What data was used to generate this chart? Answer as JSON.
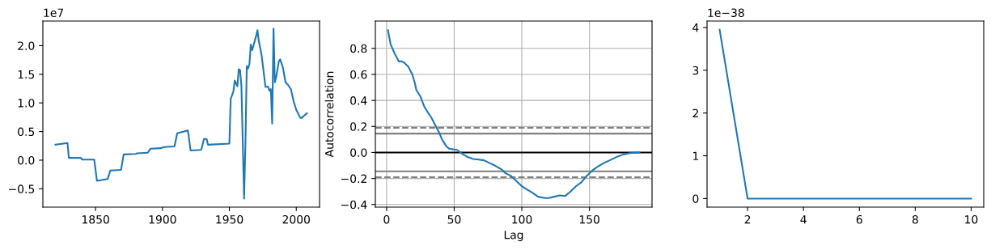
{
  "chart_data": [
    {
      "type": "line",
      "annotations": [
        "1e7"
      ],
      "xlim": [
        1810.6,
        2017.4
      ],
      "ylim": [
        -0.82,
        2.43
      ],
      "xticks": [
        1850,
        1900,
        1950,
        2000
      ],
      "yticks": [
        {
          "value": -0.5,
          "label": "−0.5"
        },
        {
          "value": 0,
          "label": "0.0"
        },
        {
          "value": 0.5,
          "label": "0.5"
        },
        {
          "value": 1,
          "label": "1.0"
        },
        {
          "value": 1.5,
          "label": "1.5"
        },
        {
          "value": 2,
          "label": "2.0"
        }
      ],
      "grid": false,
      "x": [
        1820,
        1829,
        1830,
        1839,
        1840,
        1849,
        1851,
        1859,
        1861,
        1869,
        1871,
        1880,
        1881,
        1889,
        1891,
        1899,
        1901,
        1909,
        1911,
        1919,
        1921,
        1929,
        1931,
        1933,
        1934,
        1950,
        1951,
        1953,
        1954,
        1956,
        1957,
        1958,
        1959,
        1961,
        1962,
        1963,
        1964,
        1965,
        1966,
        1967,
        1968,
        1970,
        1971,
        1972,
        1974,
        1977,
        1979,
        1980,
        1981,
        1982,
        1983,
        1984,
        1985,
        1987,
        1988,
        1990,
        1992,
        1994,
        1996,
        1998,
        2000,
        2003,
        2004,
        2008
      ],
      "series": [
        {
          "color": "#1f77b4",
          "values": [
            0.27,
            0.3,
            0.04,
            0.04,
            0.01,
            0.01,
            -0.36,
            -0.33,
            -0.18,
            -0.17,
            0.1,
            0.11,
            0.12,
            0.13,
            0.2,
            0.21,
            0.23,
            0.24,
            0.47,
            0.52,
            0.17,
            0.18,
            0.37,
            0.37,
            0.27,
            0.29,
            1.07,
            1.2,
            1.39,
            1.29,
            1.59,
            1.57,
            1.3,
            -0.67,
            0.3,
            1.64,
            1.6,
            1.68,
            2.02,
            1.92,
            2.0,
            2.17,
            2.27,
            2.08,
            1.85,
            1.28,
            1.28,
            1.21,
            1.24,
            0.64,
            2.3,
            1.36,
            1.45,
            1.73,
            1.76,
            1.62,
            1.36,
            1.31,
            1.24,
            1.03,
            0.88,
            0.74,
            0.74,
            0.82
          ]
        }
      ]
    },
    {
      "type": "line",
      "xlabel": "Lag",
      "ylabel": "Autocorrelation",
      "xlim": [
        -8.3,
        196.3
      ],
      "ylim": [
        -0.42,
        1.01
      ],
      "xticks": [
        0,
        50,
        100,
        150
      ],
      "yticks": [
        {
          "value": -0.4,
          "label": "−0.4"
        },
        {
          "value": -0.2,
          "label": "−0.2"
        },
        {
          "value": 0,
          "label": "0.0"
        },
        {
          "value": 0.2,
          "label": "0.2"
        },
        {
          "value": 0.4,
          "label": "0.4"
        },
        {
          "value": 0.6,
          "label": "0.6"
        },
        {
          "value": 0.8,
          "label": "0.8"
        }
      ],
      "grid": true,
      "ref_lines": [
        {
          "axis": "y",
          "value": 0.19,
          "color": "#808080",
          "line_style": "dashed"
        },
        {
          "axis": "y",
          "value": 0.145,
          "color": "#808080",
          "line_style": "solid"
        },
        {
          "axis": "y",
          "value": 0,
          "color": "#000000",
          "line_style": "solid"
        },
        {
          "axis": "y",
          "value": -0.145,
          "color": "#808080",
          "line_style": "solid"
        },
        {
          "axis": "y",
          "value": -0.19,
          "color": "#808080",
          "line_style": "dashed"
        }
      ],
      "x": [
        1,
        3,
        6,
        9,
        11,
        13,
        16,
        19,
        21,
        22,
        25,
        28,
        31,
        33,
        36,
        39,
        41,
        44,
        46,
        49,
        52,
        56,
        60,
        64,
        68,
        72,
        76,
        80,
        85,
        88,
        92,
        96,
        100,
        104,
        108,
        112,
        117,
        120,
        124,
        128,
        132,
        136,
        140,
        144,
        148,
        152,
        156,
        160,
        165,
        170,
        175,
        180,
        187
      ],
      "series": [
        {
          "color": "#1f77b4",
          "values": [
            0.94,
            0.83,
            0.76,
            0.7,
            0.7,
            0.69,
            0.66,
            0.6,
            0.53,
            0.48,
            0.43,
            0.35,
            0.3,
            0.27,
            0.21,
            0.15,
            0.1,
            0.05,
            0.03,
            0.025,
            0.02,
            -0.01,
            -0.035,
            -0.05,
            -0.055,
            -0.06,
            -0.08,
            -0.1,
            -0.13,
            -0.16,
            -0.18,
            -0.22,
            -0.26,
            -0.285,
            -0.31,
            -0.34,
            -0.35,
            -0.35,
            -0.34,
            -0.33,
            -0.335,
            -0.3,
            -0.26,
            -0.23,
            -0.18,
            -0.14,
            -0.11,
            -0.085,
            -0.06,
            -0.035,
            -0.015,
            -0.005,
            0.0
          ]
        }
      ]
    },
    {
      "type": "line",
      "annotations": [
        "1e−38"
      ],
      "xlim": [
        0.55,
        10.45
      ],
      "ylim": [
        -0.2,
        4.15
      ],
      "xticks": [
        2,
        4,
        6,
        8,
        10
      ],
      "yticks": [
        0,
        1,
        2,
        3,
        4
      ],
      "grid": false,
      "x": [
        1,
        2,
        3,
        4,
        5,
        6,
        7,
        8,
        9,
        10
      ],
      "series": [
        {
          "color": "#1f77b4",
          "values": [
            3.95,
            0,
            0,
            0,
            0,
            0,
            0,
            0,
            0,
            0
          ]
        }
      ]
    }
  ]
}
